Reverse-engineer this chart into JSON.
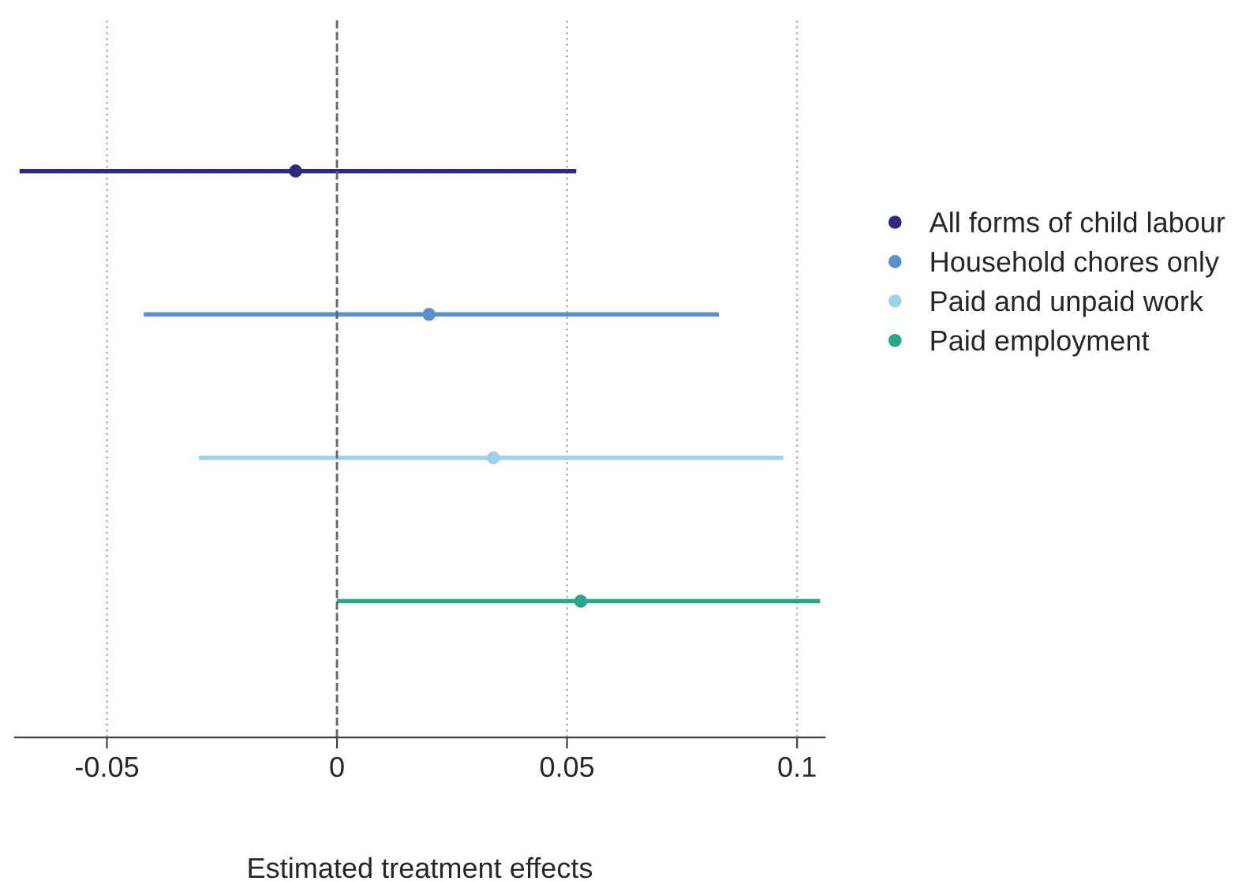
{
  "chart_data": {
    "type": "scatter",
    "orientation": "horizontal",
    "xlabel": "Estimated treatment effects",
    "categories": [
      null,
      null,
      null,
      null
    ],
    "series": [
      {
        "name": "All forms of child labour",
        "color": "#2e2a80",
        "values": [
          -0.009,
          null,
          null,
          null
        ],
        "errors": [
          [
            -0.069,
            0.052
          ],
          null,
          null,
          null
        ]
      },
      {
        "name": "Household chores only",
        "color": "#5b8fc9",
        "values": [
          null,
          0.02,
          null,
          null
        ],
        "errors": [
          null,
          [
            -0.042,
            0.083
          ],
          null,
          null
        ]
      },
      {
        "name": "Paid and unpaid work",
        "color": "#9dd3e8",
        "values": [
          null,
          null,
          0.034,
          null
        ],
        "errors": [
          null,
          null,
          [
            -0.03,
            0.097
          ],
          null
        ]
      },
      {
        "name": "Paid employment",
        "color": "#2aa68a",
        "values": [
          null,
          null,
          null,
          0.053
        ],
        "errors": [
          null,
          null,
          null,
          [
            0.0,
            0.105
          ]
        ]
      }
    ],
    "xlim": [
      -0.07,
      0.106
    ],
    "xticks": [
      -0.05,
      0,
      0.05,
      0.1
    ],
    "grid": "x",
    "legend": "right",
    "marker": "circle",
    "ref_lines": [
      {
        "axis": "x",
        "value": 0,
        "line_style": "dashed",
        "color": "#666666"
      }
    ]
  }
}
